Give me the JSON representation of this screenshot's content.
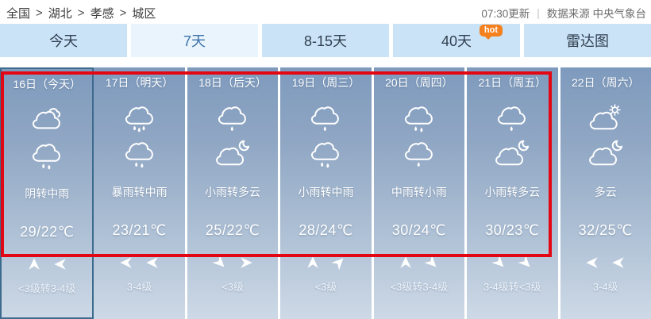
{
  "breadcrumb": {
    "separator": ">",
    "items": [
      {
        "label": "全国"
      },
      {
        "label": "湖北"
      },
      {
        "label": "孝感"
      },
      {
        "label": "城区"
      }
    ]
  },
  "meta": {
    "update_time": "07:30更新",
    "divider": "|",
    "source": "数据来源 中央气象台"
  },
  "tabs": [
    {
      "label": "今天"
    },
    {
      "label": "7天",
      "active": true
    },
    {
      "label": "8-15天"
    },
    {
      "label": "40天",
      "badge": "hot"
    },
    {
      "label": "雷达图"
    }
  ],
  "colors": {
    "alert_border": "#e30613",
    "hot_badge": "#f5801e",
    "active_tab_text": "#3a70ab",
    "board_gradient_top": "#7e9abd",
    "board_gradient_bottom": "#cdd9e6"
  },
  "days": [
    {
      "label": "16日（今天）",
      "day_icon": "overcast",
      "night_icon": "moderate-rain",
      "condition": "阴转中雨",
      "temperature": "29/22℃",
      "wind_directions": [
        "n",
        "w"
      ],
      "wind_level": "<3级转3-4级",
      "is_today": true
    },
    {
      "label": "17日（明天）",
      "day_icon": "rainstorm",
      "night_icon": "moderate-rain",
      "condition": "暴雨转中雨",
      "temperature": "23/21℃",
      "wind_directions": [
        "w",
        "w"
      ],
      "wind_level": "3-4级"
    },
    {
      "label": "18日（后天）",
      "day_icon": "light-rain",
      "night_icon": "cloudy-night",
      "condition": "小雨转多云",
      "temperature": "25/22℃",
      "wind_directions": [
        "se",
        "e"
      ],
      "wind_level": "<3级"
    },
    {
      "label": "19日（周三）",
      "day_icon": "light-rain",
      "night_icon": "moderate-rain",
      "condition": "小雨转中雨",
      "temperature": "28/24℃",
      "wind_directions": [
        "n",
        "ne"
      ],
      "wind_level": "<3级"
    },
    {
      "label": "20日（周四）",
      "day_icon": "moderate-rain",
      "night_icon": "light-rain",
      "condition": "中雨转小雨",
      "temperature": "30/24℃",
      "wind_directions": [
        "n",
        "se"
      ],
      "wind_level": "<3级转3-4级"
    },
    {
      "label": "21日（周五）",
      "day_icon": "light-rain",
      "night_icon": "cloudy-night",
      "condition": "小雨转多云",
      "temperature": "30/23℃",
      "wind_directions": [
        "se",
        "se"
      ],
      "wind_level": "3-4级转<3级"
    },
    {
      "label": "22日（周六）",
      "day_icon": "cloudy-day",
      "night_icon": "cloudy-night",
      "condition": "多云",
      "temperature": "32/25℃",
      "wind_directions": [
        "w",
        "w"
      ],
      "wind_level": "3-4级"
    }
  ]
}
